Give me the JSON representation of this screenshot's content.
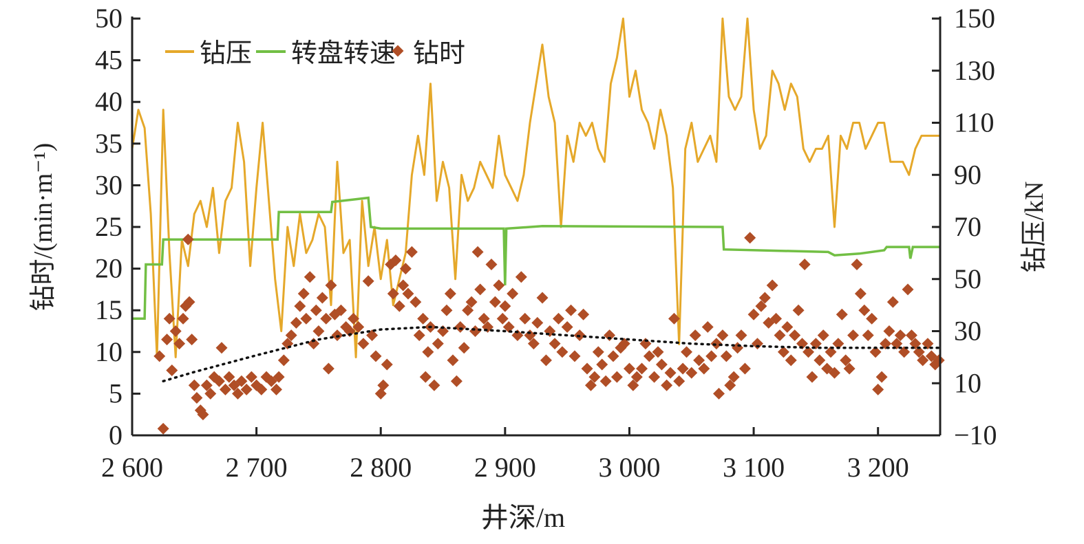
{
  "chart_data": {
    "type": "line",
    "xlabel": "井深/m",
    "ylabel_left": "钻时/(min·m⁻¹)",
    "ylabel_right": "钻压/kN",
    "xlim": [
      2600,
      3250
    ],
    "ylim_left": [
      0,
      50
    ],
    "ylim_right": [
      -10,
      150
    ],
    "x_ticks": [
      2600,
      2700,
      2800,
      2900,
      3000,
      3100,
      3200
    ],
    "x_tick_labels": [
      "2 600",
      "2 700",
      "2 800",
      "2 900",
      "3 000",
      "3 100",
      "3 200"
    ],
    "y_left_ticks": [
      "0",
      "5",
      "10",
      "15",
      "20",
      "25",
      "30",
      "35",
      "40",
      "45",
      "50"
    ],
    "y_right_ticks": [
      "−10",
      "10",
      "30",
      "50",
      "70",
      "90",
      "110",
      "130",
      "150"
    ],
    "legend": {
      "position": "top-left",
      "entries": [
        "钻压",
        "转盘转速",
        "钻时"
      ]
    },
    "colors": {
      "wob": "#E5A82A",
      "rpm": "#72BF44",
      "rop": "#B04E26",
      "trend": "#111111"
    },
    "wob_series": {
      "name": "钻压",
      "axis": "right",
      "x_start": 2600,
      "x_step": 5,
      "values": [
        100,
        115,
        108,
        75,
        20,
        115,
        60,
        20,
        65,
        55,
        75,
        80,
        70,
        85,
        60,
        80,
        85,
        110,
        95,
        55,
        85,
        110,
        80,
        50,
        30,
        70,
        55,
        75,
        60,
        65,
        75,
        70,
        40,
        95,
        60,
        65,
        20,
        80,
        55,
        70,
        50,
        65,
        40,
        50,
        60,
        90,
        105,
        90,
        125,
        80,
        95,
        85,
        50,
        90,
        80,
        85,
        95,
        90,
        85,
        105,
        90,
        85,
        80,
        90,
        110,
        125,
        140,
        120,
        110,
        70,
        105,
        95,
        110,
        105,
        110,
        100,
        95,
        125,
        135,
        150,
        120,
        130,
        115,
        110,
        100,
        115,
        105,
        85,
        25,
        100,
        110,
        95,
        100,
        105,
        95,
        150,
        120,
        115,
        120,
        150,
        115,
        100,
        105,
        130,
        125,
        115,
        125,
        120,
        100,
        95,
        100,
        100,
        105,
        70,
        105,
        100,
        110,
        110,
        100,
        105,
        110,
        110,
        95,
        95,
        95,
        90,
        100,
        105,
        105,
        105,
        105
      ]
    },
    "rpm_series": {
      "name": "转盘转速",
      "axis": "left",
      "points": [
        [
          2600,
          14
        ],
        [
          2610,
          14
        ],
        [
          2611,
          20.5
        ],
        [
          2624,
          20.5
        ],
        [
          2625,
          23.5
        ],
        [
          2717,
          23.5
        ],
        [
          2718,
          26.8
        ],
        [
          2760,
          26.8
        ],
        [
          2761,
          28
        ],
        [
          2790,
          28.5
        ],
        [
          2792,
          25
        ],
        [
          2800,
          24.8
        ],
        [
          2899,
          24.8
        ],
        [
          2900,
          18
        ],
        [
          2901,
          24.8
        ],
        [
          2930,
          25.1
        ],
        [
          3075,
          25
        ],
        [
          3076,
          22.3
        ],
        [
          3160,
          22
        ],
        [
          3165,
          21.6
        ],
        [
          3185,
          21.8
        ],
        [
          3205,
          22.2
        ],
        [
          3207,
          22.6
        ],
        [
          3225,
          22.6
        ],
        [
          3226,
          21.2
        ],
        [
          3228,
          22.6
        ],
        [
          3250,
          22.6
        ]
      ]
    },
    "rop_series": {
      "name": "钻时",
      "axis": "left",
      "points": [
        [
          2625,
          0.8
        ],
        [
          2622,
          9.5
        ],
        [
          2628,
          11.5
        ],
        [
          2630,
          14
        ],
        [
          2632,
          7.8
        ],
        [
          2635,
          12.5
        ],
        [
          2638,
          11
        ],
        [
          2641,
          14
        ],
        [
          2643,
          15.5
        ],
        [
          2645,
          23.5
        ],
        [
          2646,
          16
        ],
        [
          2648,
          11.5
        ],
        [
          2650,
          6
        ],
        [
          2652,
          4.5
        ],
        [
          2655,
          3
        ],
        [
          2657,
          2.5
        ],
        [
          2660,
          6
        ],
        [
          2663,
          5
        ],
        [
          2666,
          7
        ],
        [
          2670,
          6.5
        ],
        [
          2672,
          10.5
        ],
        [
          2675,
          5.5
        ],
        [
          2678,
          7
        ],
        [
          2682,
          6
        ],
        [
          2685,
          5
        ],
        [
          2688,
          6.5
        ],
        [
          2692,
          5.5
        ],
        [
          2696,
          7
        ],
        [
          2700,
          6
        ],
        [
          2704,
          5.5
        ],
        [
          2708,
          7
        ],
        [
          2712,
          6.5
        ],
        [
          2716,
          5.5
        ],
        [
          2718,
          7
        ],
        [
          2722,
          9
        ],
        [
          2725,
          11
        ],
        [
          2728,
          12
        ],
        [
          2732,
          13.5
        ],
        [
          2735,
          15.5
        ],
        [
          2738,
          17
        ],
        [
          2740,
          14
        ],
        [
          2743,
          19
        ],
        [
          2746,
          11
        ],
        [
          2748,
          15
        ],
        [
          2750,
          12.5
        ],
        [
          2753,
          16.5
        ],
        [
          2756,
          14
        ],
        [
          2758,
          8
        ],
        [
          2760,
          18
        ],
        [
          2763,
          14.5
        ],
        [
          2765,
          12
        ],
        [
          2768,
          15
        ],
        [
          2772,
          13
        ],
        [
          2775,
          12.5
        ],
        [
          2778,
          14
        ],
        [
          2782,
          13
        ],
        [
          2786,
          11
        ],
        [
          2790,
          18.5
        ],
        [
          2793,
          12
        ],
        [
          2796,
          9.5
        ],
        [
          2800,
          5
        ],
        [
          2802,
          6
        ],
        [
          2805,
          8.5
        ],
        [
          2808,
          20.5
        ],
        [
          2810,
          17
        ],
        [
          2812,
          21
        ],
        [
          2815,
          15.5
        ],
        [
          2818,
          18
        ],
        [
          2820,
          20
        ],
        [
          2822,
          17
        ],
        [
          2825,
          22
        ],
        [
          2828,
          16
        ],
        [
          2831,
          12
        ],
        [
          2834,
          14
        ],
        [
          2836,
          7
        ],
        [
          2838,
          10
        ],
        [
          2840,
          13
        ],
        [
          2843,
          6
        ],
        [
          2846,
          11
        ],
        [
          2850,
          12.5
        ],
        [
          2853,
          15
        ],
        [
          2856,
          17
        ],
        [
          2858,
          9
        ],
        [
          2861,
          6.5
        ],
        [
          2864,
          13
        ],
        [
          2867,
          10.5
        ],
        [
          2870,
          15
        ],
        [
          2873,
          16
        ],
        [
          2876,
          12.5
        ],
        [
          2878,
          22
        ],
        [
          2880,
          17.5
        ],
        [
          2883,
          14
        ],
        [
          2886,
          13
        ],
        [
          2889,
          20.5
        ],
        [
          2892,
          16
        ],
        [
          2895,
          18
        ],
        [
          2898,
          14
        ],
        [
          2900,
          15.5
        ],
        [
          2903,
          13
        ],
        [
          2906,
          17
        ],
        [
          2910,
          12
        ],
        [
          2913,
          19
        ],
        [
          2916,
          14
        ],
        [
          2920,
          12
        ],
        [
          2923,
          11
        ],
        [
          2926,
          13.5
        ],
        [
          2930,
          16.5
        ],
        [
          2933,
          9
        ],
        [
          2936,
          12.5
        ],
        [
          2940,
          11
        ],
        [
          2943,
          14
        ],
        [
          2946,
          10
        ],
        [
          2950,
          13
        ],
        [
          2953,
          15
        ],
        [
          2956,
          9.5
        ],
        [
          2960,
          12
        ],
        [
          2963,
          14.5
        ],
        [
          2966,
          8
        ],
        [
          2969,
          6
        ],
        [
          2972,
          7
        ],
        [
          2975,
          10
        ],
        [
          2978,
          8.5
        ],
        [
          2981,
          6.5
        ],
        [
          2984,
          12
        ],
        [
          2987,
          9.5
        ],
        [
          2990,
          7
        ],
        [
          2993,
          10.5
        ],
        [
          2996,
          11
        ],
        [
          3000,
          8
        ],
        [
          3003,
          6
        ],
        [
          3006,
          7
        ],
        [
          3010,
          8
        ],
        [
          3013,
          11
        ],
        [
          3016,
          9.5
        ],
        [
          3020,
          7
        ],
        [
          3023,
          10
        ],
        [
          3026,
          8.5
        ],
        [
          3030,
          6
        ],
        [
          3033,
          7.5
        ],
        [
          3036,
          14
        ],
        [
          3040,
          6.5
        ],
        [
          3043,
          8
        ],
        [
          3046,
          10
        ],
        [
          3050,
          7.5
        ],
        [
          3053,
          12
        ],
        [
          3056,
          9
        ],
        [
          3060,
          8
        ],
        [
          3063,
          13
        ],
        [
          3066,
          9.5
        ],
        [
          3070,
          11
        ],
        [
          3072,
          5
        ],
        [
          3075,
          12
        ],
        [
          3078,
          9.5
        ],
        [
          3081,
          6
        ],
        [
          3084,
          7
        ],
        [
          3087,
          10.5
        ],
        [
          3090,
          12
        ],
        [
          3093,
          8
        ],
        [
          3097,
          23.7
        ],
        [
          3100,
          14.5
        ],
        [
          3103,
          11
        ],
        [
          3106,
          15.5
        ],
        [
          3109,
          16.5
        ],
        [
          3112,
          13.5
        ],
        [
          3115,
          18
        ],
        [
          3118,
          14
        ],
        [
          3121,
          12
        ],
        [
          3124,
          10
        ],
        [
          3127,
          13
        ],
        [
          3130,
          9
        ],
        [
          3133,
          12
        ],
        [
          3136,
          15
        ],
        [
          3139,
          11
        ],
        [
          3141,
          20.5
        ],
        [
          3144,
          10
        ],
        [
          3147,
          7
        ],
        [
          3150,
          11
        ],
        [
          3153,
          9
        ],
        [
          3156,
          12
        ],
        [
          3159,
          8
        ],
        [
          3162,
          10
        ],
        [
          3165,
          7.5
        ],
        [
          3168,
          11
        ],
        [
          3171,
          14.5
        ],
        [
          3174,
          9
        ],
        [
          3177,
          8
        ],
        [
          3180,
          12
        ],
        [
          3183,
          20.5
        ],
        [
          3186,
          17
        ],
        [
          3189,
          15
        ],
        [
          3192,
          12
        ],
        [
          3195,
          14
        ],
        [
          3198,
          10
        ],
        [
          3200,
          5.5
        ],
        [
          3203,
          7
        ],
        [
          3206,
          11
        ],
        [
          3209,
          12.5
        ],
        [
          3212,
          16
        ],
        [
          3215,
          11
        ],
        [
          3218,
          12
        ],
        [
          3221,
          10
        ],
        [
          3224,
          17.5
        ],
        [
          3227,
          12
        ],
        [
          3230,
          11
        ],
        [
          3233,
          10
        ],
        [
          3236,
          9
        ],
        [
          3240,
          11
        ],
        [
          3243,
          9.5
        ],
        [
          3246,
          8.5
        ],
        [
          3249,
          9
        ]
      ]
    },
    "trend_series": {
      "name": "trend",
      "axis": "left",
      "points": [
        [
          2625,
          6.5
        ],
        [
          2650,
          7.6
        ],
        [
          2700,
          9.6
        ],
        [
          2750,
          11.5
        ],
        [
          2800,
          12.7
        ],
        [
          2840,
          13
        ],
        [
          2900,
          12.5
        ],
        [
          2950,
          12
        ],
        [
          3000,
          11.5
        ],
        [
          3050,
          11
        ],
        [
          3100,
          10.7
        ],
        [
          3150,
          10.5
        ],
        [
          3200,
          10.5
        ],
        [
          3250,
          10.5
        ]
      ]
    }
  }
}
